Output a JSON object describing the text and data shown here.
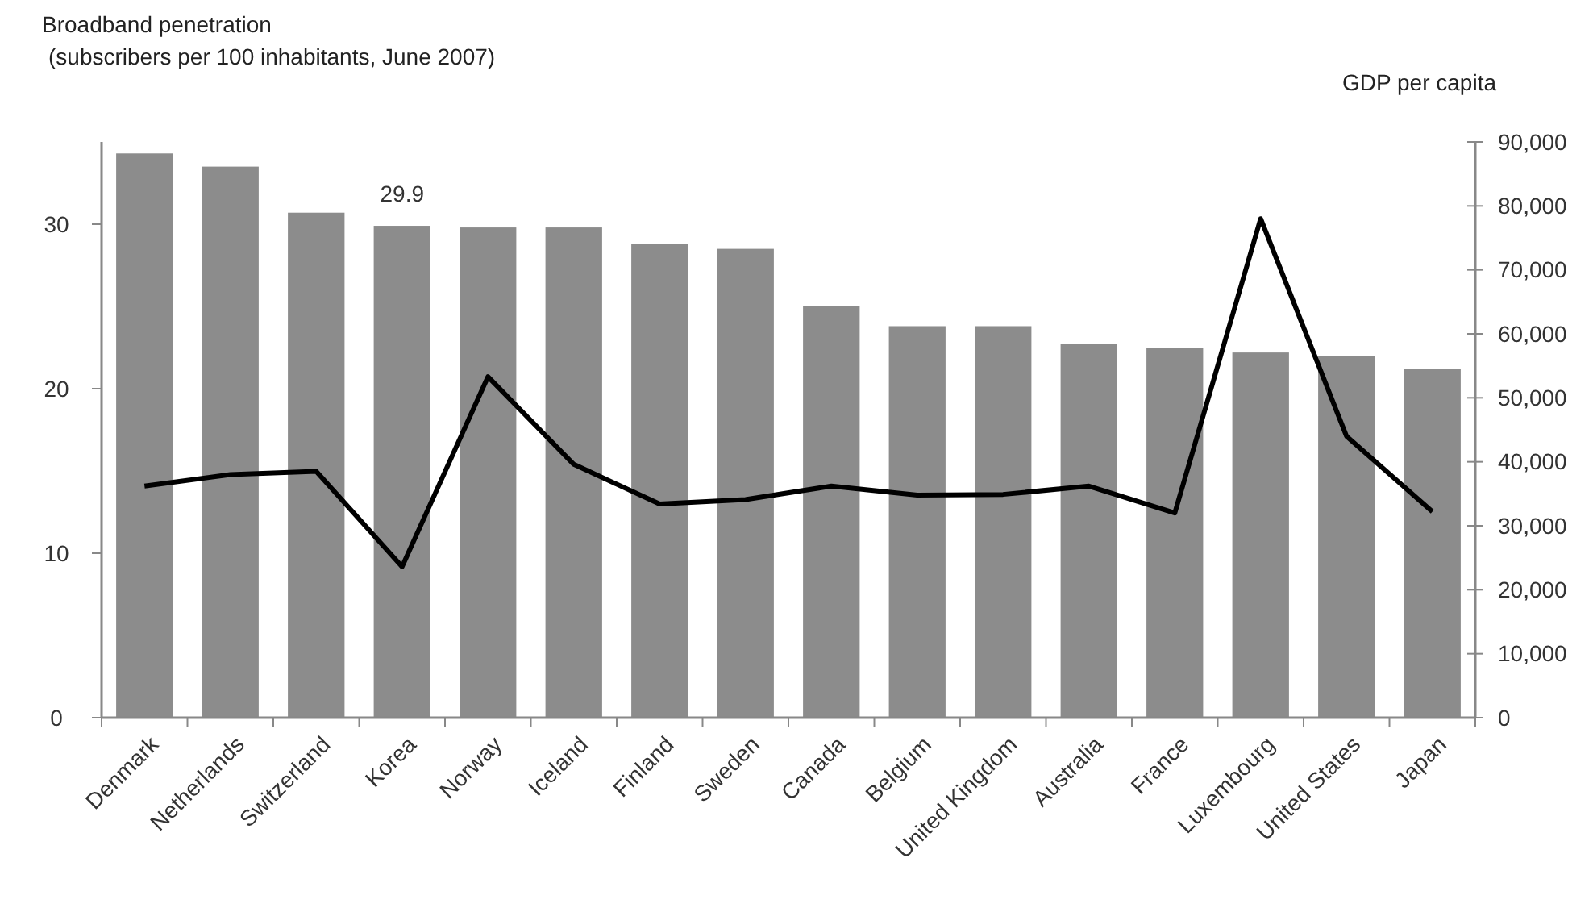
{
  "chart_data": {
    "type": "bar",
    "ylabel": "Broadband penetration\n(subscribers per 100 inhabitants, June 2007)",
    "y2label": "GDP per capita",
    "categories": [
      "Denmark",
      "Netherlands",
      "Switzerland",
      "Korea",
      "Norway",
      "Iceland",
      "Finland",
      "Sweden",
      "Canada",
      "Belgium",
      "United Kingdom",
      "Australia",
      "France",
      "Luxembourg",
      "United States",
      "Japan"
    ],
    "series": [
      {
        "color": "#8c8c8c",
        "values": [
          34.3,
          33.5,
          30.7,
          29.9,
          29.8,
          29.8,
          28.8,
          28.5,
          25.0,
          23.8,
          23.8,
          22.7,
          22.5,
          22.2,
          22.0,
          21.2
        ],
        "value_labels": [
          null,
          null,
          null,
          "29.9",
          null,
          null,
          null,
          null,
          null,
          null,
          null,
          null,
          null,
          null,
          null,
          null
        ]
      },
      {
        "type": "line",
        "axis": "y2",
        "color": "#000000",
        "values": [
          36200,
          38000,
          38500,
          23600,
          53300,
          39600,
          33400,
          34100,
          36200,
          34800,
          34900,
          36200,
          32000,
          78000,
          44000,
          32200
        ]
      }
    ],
    "ylim": [
      0,
      35
    ],
    "yticks": [
      0,
      10,
      20,
      30
    ],
    "y2lim": [
      0,
      90000
    ],
    "y2ticks": [
      {
        "value": 0,
        "label": "0"
      },
      {
        "value": 10000,
        "label": "10,000"
      },
      {
        "value": 20000,
        "label": "20,000"
      },
      {
        "value": 30000,
        "label": "30,000"
      },
      {
        "value": 40000,
        "label": "40,000"
      },
      {
        "value": 50000,
        "label": "50,000"
      },
      {
        "value": 60000,
        "label": "60,000"
      },
      {
        "value": 70000,
        "label": "70,000"
      },
      {
        "value": 80000,
        "label": "80,000"
      },
      {
        "value": 90000,
        "label": "90,000"
      }
    ],
    "grid": false,
    "marker": "none",
    "line_style": "solid"
  }
}
